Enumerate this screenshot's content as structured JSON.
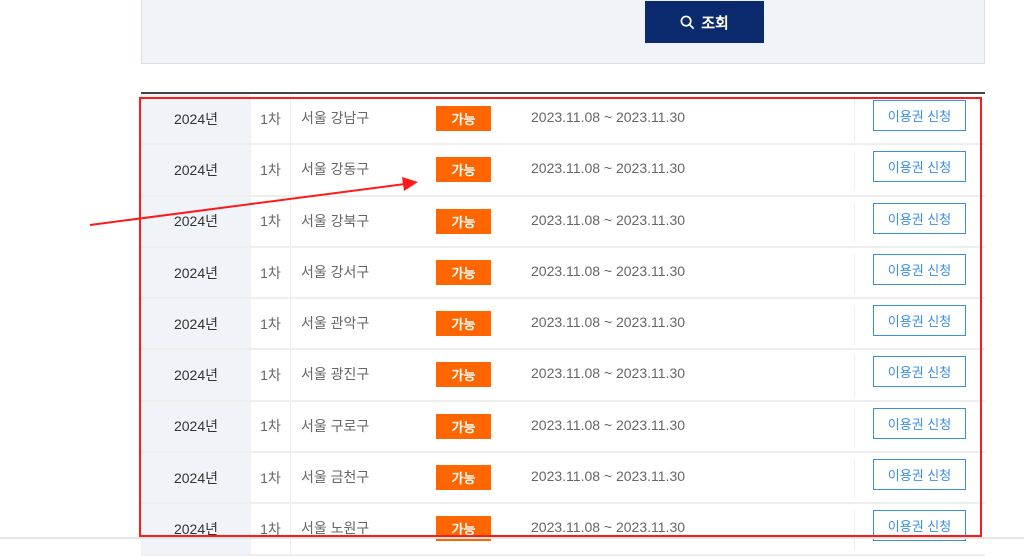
{
  "search": {
    "button_label": "조회",
    "icon": "search-icon"
  },
  "colors": {
    "search_button": "#0b2a6e",
    "status_badge": "#ff6600",
    "apply_button": "#3a8ee6",
    "highlight": "#ff1a1a"
  },
  "rows": [
    {
      "year": "2024년",
      "round": "1차",
      "region": "서울 강남구",
      "status": "가능",
      "period": "2023.11.08 ~ 2023.11.30",
      "action": "이용권 신청"
    },
    {
      "year": "2024년",
      "round": "1차",
      "region": "서울 강동구",
      "status": "가능",
      "period": "2023.11.08 ~ 2023.11.30",
      "action": "이용권 신청"
    },
    {
      "year": "2024년",
      "round": "1차",
      "region": "서울 강북구",
      "status": "가능",
      "period": "2023.11.08 ~ 2023.11.30",
      "action": "이용권 신청"
    },
    {
      "year": "2024년",
      "round": "1차",
      "region": "서울 강서구",
      "status": "가능",
      "period": "2023.11.08 ~ 2023.11.30",
      "action": "이용권 신청"
    },
    {
      "year": "2024년",
      "round": "1차",
      "region": "서울 관악구",
      "status": "가능",
      "period": "2023.11.08 ~ 2023.11.30",
      "action": "이용권 신청"
    },
    {
      "year": "2024년",
      "round": "1차",
      "region": "서울 광진구",
      "status": "가능",
      "period": "2023.11.08 ~ 2023.11.30",
      "action": "이용권 신청"
    },
    {
      "year": "2024년",
      "round": "1차",
      "region": "서울 구로구",
      "status": "가능",
      "period": "2023.11.08 ~ 2023.11.30",
      "action": "이용권 신청"
    },
    {
      "year": "2024년",
      "round": "1차",
      "region": "서울 금천구",
      "status": "가능",
      "period": "2023.11.08 ~ 2023.11.30",
      "action": "이용권 신청"
    },
    {
      "year": "2024년",
      "round": "1차",
      "region": "서울 노원구",
      "status": "가능",
      "period": "2023.11.08 ~ 2023.11.30",
      "action": "이용권 신청"
    }
  ]
}
